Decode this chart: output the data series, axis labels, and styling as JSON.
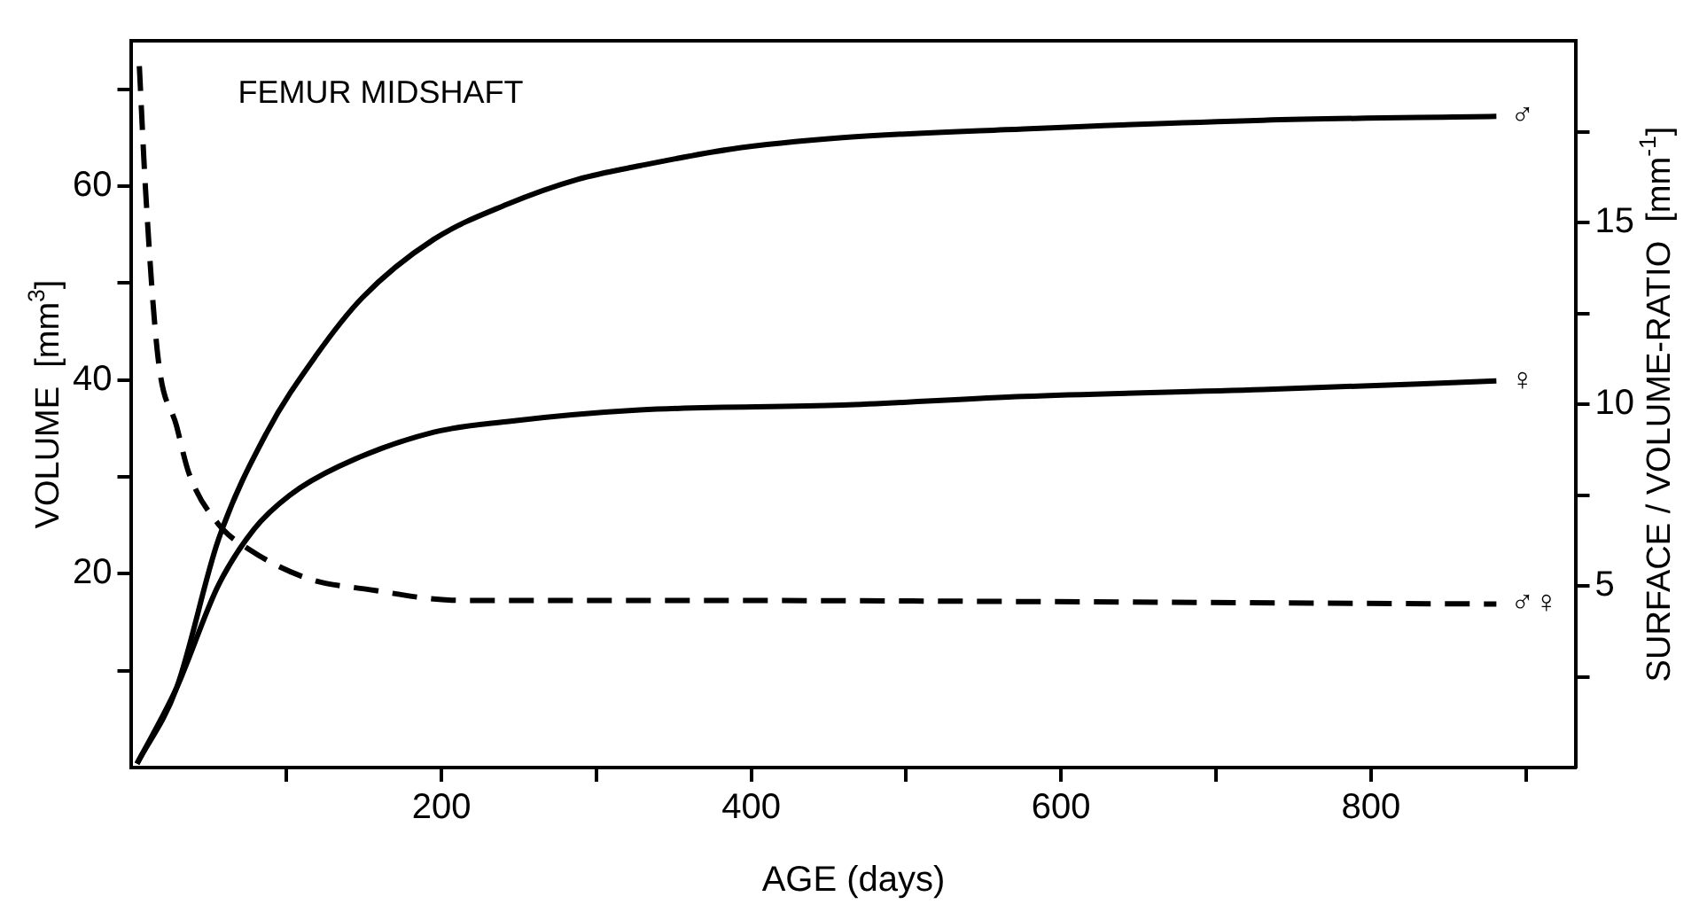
{
  "chart_data": {
    "type": "line",
    "title": "FEMUR MIDSHAFT",
    "xlabel": "AGE (days)",
    "ylabel": "VOLUME  [mm$^{3}$]",
    "y2label": "SURFACE / VOLUME-RATIO  [mm$^{-1}$]",
    "xlim": [
      0,
      932
    ],
    "xticks": [
      {
        "value": 100,
        "label": null
      },
      200,
      {
        "value": 300,
        "label": null
      },
      400,
      {
        "value": 500,
        "label": null
      },
      600,
      {
        "value": 700,
        "label": null
      },
      800,
      {
        "value": 900,
        "label": null
      }
    ],
    "ylim": [
      0,
      75
    ],
    "yticks": [
      {
        "value": 10,
        "label": null
      },
      20,
      {
        "value": 30,
        "label": null
      },
      40,
      {
        "value": 50,
        "label": null
      },
      60,
      {
        "value": 70,
        "label": null
      }
    ],
    "y2lim": [
      0,
      20
    ],
    "y2ticks": [
      {
        "value": 2.5,
        "label": null
      },
      5,
      {
        "value": 7.5,
        "label": null
      },
      10,
      {
        "value": 12.5,
        "label": null
      },
      15,
      {
        "value": 17.5,
        "label": null
      }
    ],
    "grid": false,
    "legend": false,
    "marker": "none",
    "series": [
      {
        "name": "♂",
        "color": "#000000",
        "line_style": "solid",
        "x": [
          3.5,
          29,
          56,
          87,
          119,
          149,
          195,
          242,
          288,
          328,
          386,
          459,
          576,
          730,
          881
        ],
        "values": [
          0.4,
          8.2,
          23.5,
          34.5,
          42.5,
          48.5,
          54.5,
          58.1,
          60.7,
          62.1,
          63.8,
          65.0,
          65.9,
          66.8,
          67.2
        ]
      },
      {
        "name": "♀",
        "color": "#000000",
        "line_style": "solid",
        "x": [
          3.5,
          29,
          56,
          79,
          102,
          134,
          195,
          242,
          328,
          459,
          576,
          730,
          881
        ],
        "values": [
          0.4,
          8.2,
          18.8,
          24.6,
          28.1,
          31.1,
          34.6,
          35.7,
          36.9,
          37.4,
          38.3,
          39.0,
          39.9
        ]
      },
      {
        "name": "♂♀",
        "color": "#000000",
        "line_style": "dashed",
        "axis": "y2",
        "x": [
          5,
          9,
          17,
          29,
          37,
          56,
          76,
          114,
          153,
          212,
          328,
          881
        ],
        "values": [
          19.3,
          15.9,
          11.3,
          9.4,
          8.1,
          6.7,
          6.0,
          5.2,
          4.9,
          4.6,
          4.6,
          4.5
        ]
      }
    ]
  }
}
